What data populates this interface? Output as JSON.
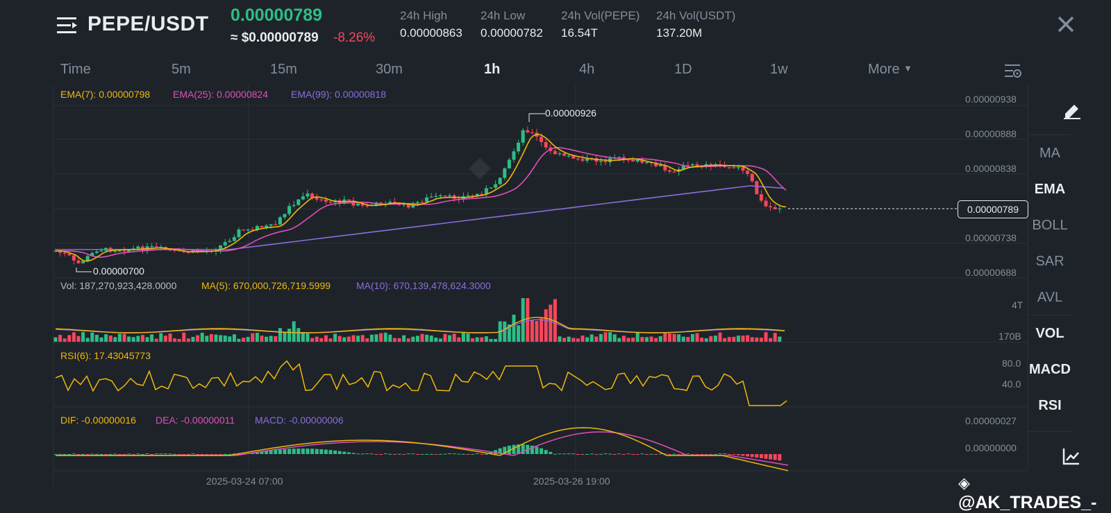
{
  "header": {
    "pair": "PEPE/USDT",
    "last_price": "0.00000789",
    "usd_price": "≈ $0.00000789",
    "change_pct": "-8.26%",
    "stats": [
      {
        "label": "24h High",
        "value": "0.00000863"
      },
      {
        "label": "24h Low",
        "value": "0.00000782"
      },
      {
        "label": "24h Vol(PEPE)",
        "value": "16.54T"
      },
      {
        "label": "24h Vol(USDT)",
        "value": "137.20M"
      }
    ]
  },
  "timeframes": [
    "Time",
    "5m",
    "15m",
    "30m",
    "1h",
    "4h",
    "1D",
    "1w",
    "More"
  ],
  "active_timeframe": "1h",
  "indicators": {
    "ema7": "EMA(7): 0.00000798",
    "ema25": "EMA(25): 0.00000824",
    "ema99": "EMA(99): 0.00000818",
    "vol": "Vol: 187,270,923,428.0000",
    "vol_ma5": "MA(5): 670,000,726,719.5999",
    "vol_ma10": "MA(10): 670,139,478,624.3000",
    "rsi": "RSI(6): 17.43045773",
    "dif": "DIF: -0.00000016",
    "dea": "DEA: -0.00000011",
    "macd": "MACD: -0.00000006"
  },
  "price_axis": [
    "0.00000938",
    "0.00000888",
    "0.00000838",
    "0.00000738",
    "0.00000688"
  ],
  "current_price_tag": "0.00000789",
  "high_marker": "0.00000926",
  "low_marker": "0.00000700",
  "volume_axis": [
    "4T",
    "170B"
  ],
  "rsi_axis": [
    "80.0",
    "40.0"
  ],
  "macd_axis": [
    "0.00000027",
    "0.00000000"
  ],
  "time_axis": [
    "2025-03-24 07:00",
    "2025-03-26 19:00"
  ],
  "sidebar": {
    "items": [
      "MA",
      "EMA",
      "BOLL",
      "SAR",
      "AVL",
      "VOL",
      "MACD",
      "RSI"
    ],
    "active": [
      "EMA",
      "VOL",
      "MACD",
      "RSI"
    ]
  },
  "watermark_text": "@AK_TRADES_-",
  "colors": {
    "up": "#2ebd85",
    "down": "#f6465d",
    "ema7": "#f0b90b",
    "ema25": "#e04fbb",
    "ema99": "#8c6ce0",
    "bg": "#1e2329"
  },
  "icons": {
    "menu": "menu-icon",
    "close": "close-icon",
    "settings": "chart-settings-icon",
    "draw": "draw-icon",
    "chart": "chart-type-icon"
  },
  "chart_data": {
    "type": "candlestick",
    "ylim": [
      6.88e-06,
      9.38e-06
    ],
    "note_points": {
      "high": 9.26e-06,
      "low": 7e-06,
      "last": 7.89e-06
    }
  }
}
